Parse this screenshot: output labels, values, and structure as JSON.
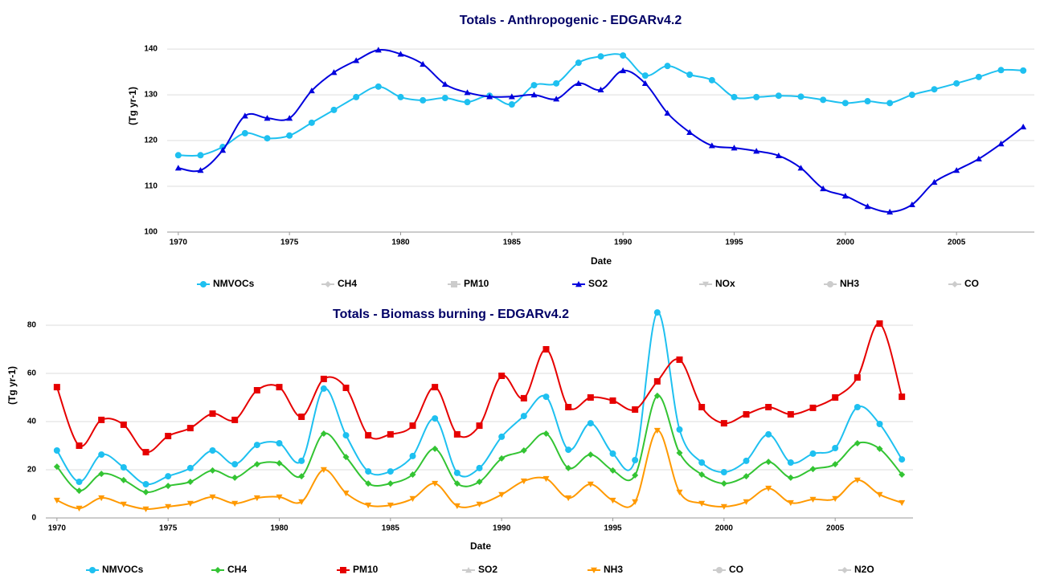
{
  "chart_data": [
    {
      "type": "line",
      "title": "Totals - Anthropogenic - EDGARv4.2",
      "ylabel": "(Tg yr-1)",
      "xlabel": "Date",
      "x": [
        1970,
        1971,
        1972,
        1973,
        1974,
        1975,
        1976,
        1977,
        1978,
        1979,
        1980,
        1981,
        1982,
        1983,
        1984,
        1985,
        1986,
        1987,
        1988,
        1989,
        1990,
        1991,
        1992,
        1993,
        1994,
        1995,
        1996,
        1997,
        1998,
        1999,
        2000,
        2001,
        2002,
        2003,
        2004,
        2005,
        2006,
        2007,
        2008
      ],
      "xlim": [
        1969.5,
        2008.5
      ],
      "xticks": [
        1970,
        1975,
        1980,
        1985,
        1990,
        1995,
        2000,
        2005
      ],
      "ylim": [
        100,
        143
      ],
      "yticks": [
        100,
        110,
        120,
        130,
        140
      ],
      "grid": true,
      "series": [
        {
          "name": "NMVOCs",
          "color": "#1ec0f0",
          "marker": "circle",
          "visible": true,
          "values": [
            116.8,
            116.8,
            118.6,
            121.6,
            120.5,
            121.1,
            123.9,
            126.7,
            129.5,
            131.8,
            129.5,
            128.8,
            129.3,
            128.4,
            129.8,
            127.9,
            132.1,
            132.5,
            137.0,
            138.4,
            138.6,
            134.2,
            136.3,
            134.4,
            133.2,
            129.5,
            129.5,
            129.8,
            129.6,
            128.9,
            128.2,
            128.6,
            128.2,
            130.0,
            131.2,
            132.5,
            133.9,
            135.4,
            135.3
          ]
        },
        {
          "name": "CH4",
          "color": "#cccccc",
          "marker": "diamond",
          "visible": false,
          "values": [
            null,
            null,
            null,
            null,
            null,
            null,
            null,
            null,
            null,
            null,
            null,
            null,
            null,
            null,
            null,
            null,
            null,
            null,
            null,
            null,
            null,
            null,
            null,
            null,
            null,
            null,
            null,
            null,
            null,
            null,
            null,
            null,
            null,
            null,
            null,
            null,
            null,
            null,
            null
          ]
        },
        {
          "name": "PM10",
          "color": "#cccccc",
          "marker": "square",
          "visible": false,
          "values": [
            null,
            null,
            null,
            null,
            null,
            null,
            null,
            null,
            null,
            null,
            null,
            null,
            null,
            null,
            null,
            null,
            null,
            null,
            null,
            null,
            null,
            null,
            null,
            null,
            null,
            null,
            null,
            null,
            null,
            null,
            null,
            null,
            null,
            null,
            null,
            null,
            null,
            null,
            null
          ]
        },
        {
          "name": "SO2",
          "color": "#0000dd",
          "marker": "triangle",
          "visible": true,
          "values": [
            114.0,
            113.5,
            117.9,
            125.4,
            124.9,
            124.9,
            130.9,
            134.9,
            137.5,
            139.8,
            138.9,
            136.7,
            132.3,
            130.5,
            129.6,
            129.6,
            130.0,
            129.1,
            132.5,
            131.1,
            135.3,
            132.5,
            126.0,
            121.8,
            118.9,
            118.4,
            117.7,
            116.7,
            114.0,
            109.5,
            107.9,
            105.6,
            104.4,
            106.0,
            110.9,
            113.5,
            116.0,
            119.3,
            123.0
          ]
        },
        {
          "name": "NOx",
          "color": "#cccccc",
          "marker": "triangle-down",
          "visible": false,
          "values": [
            null,
            null,
            null,
            null,
            null,
            null,
            null,
            null,
            null,
            null,
            null,
            null,
            null,
            null,
            null,
            null,
            null,
            null,
            null,
            null,
            null,
            null,
            null,
            null,
            null,
            null,
            null,
            null,
            null,
            null,
            null,
            null,
            null,
            null,
            null,
            null,
            null,
            null,
            null
          ]
        },
        {
          "name": "NH3",
          "color": "#cccccc",
          "marker": "circle",
          "visible": false,
          "values": [
            null,
            null,
            null,
            null,
            null,
            null,
            null,
            null,
            null,
            null,
            null,
            null,
            null,
            null,
            null,
            null,
            null,
            null,
            null,
            null,
            null,
            null,
            null,
            null,
            null,
            null,
            null,
            null,
            null,
            null,
            null,
            null,
            null,
            null,
            null,
            null,
            null,
            null,
            null
          ]
        },
        {
          "name": "CO",
          "color": "#cccccc",
          "marker": "diamond",
          "visible": false,
          "values": [
            null,
            null,
            null,
            null,
            null,
            null,
            null,
            null,
            null,
            null,
            null,
            null,
            null,
            null,
            null,
            null,
            null,
            null,
            null,
            null,
            null,
            null,
            null,
            null,
            null,
            null,
            null,
            null,
            null,
            null,
            null,
            null,
            null,
            null,
            null,
            null,
            null,
            null,
            null
          ]
        }
      ]
    },
    {
      "type": "line",
      "title": "Totals - Biomass burning - EDGARv4.2",
      "ylabel": "(Tg yr-1)",
      "xlabel": "Date",
      "x": [
        1970,
        1971,
        1972,
        1973,
        1974,
        1975,
        1976,
        1977,
        1978,
        1979,
        1980,
        1981,
        1982,
        1983,
        1984,
        1985,
        1986,
        1987,
        1988,
        1989,
        1990,
        1991,
        1992,
        1993,
        1994,
        1995,
        1996,
        1997,
        1998,
        1999,
        2000,
        2001,
        2002,
        2003,
        2004,
        2005,
        2006,
        2007,
        2008
      ],
      "xlim": [
        1969.5,
        2008.5
      ],
      "xticks": [
        1970,
        1975,
        1980,
        1985,
        1990,
        1995,
        2000,
        2005
      ],
      "ylim": [
        0,
        88
      ],
      "yticks": [
        0,
        20,
        40,
        60,
        80
      ],
      "grid": true,
      "series": [
        {
          "name": "NMVOCs",
          "color": "#1ec0f0",
          "marker": "circle",
          "visible": true,
          "values": [
            28,
            15,
            26.3,
            21,
            14,
            17.3,
            20.7,
            28,
            22.3,
            30.3,
            31,
            23.7,
            53.7,
            34.3,
            19.3,
            19.3,
            25.7,
            41.3,
            18.7,
            20.7,
            33.7,
            42.3,
            50.3,
            28.3,
            39.3,
            26.7,
            24,
            85.3,
            36.7,
            23,
            19,
            23.7,
            34.7,
            23,
            26.7,
            29,
            46,
            39,
            24.3
          ]
        },
        {
          "name": "CH4",
          "color": "#33c433",
          "marker": "diamond",
          "visible": true,
          "values": [
            21.3,
            11.3,
            18.3,
            15.7,
            10.7,
            13.3,
            15,
            19.7,
            16.7,
            22.3,
            22.7,
            17.3,
            35,
            25.3,
            14.3,
            14.3,
            18,
            28.7,
            14.3,
            15,
            24.7,
            28,
            35,
            20.7,
            26.3,
            19.7,
            17.7,
            50.7,
            27,
            18,
            14.3,
            17.3,
            23.3,
            16.7,
            20.3,
            22.3,
            31,
            28.7,
            18
          ]
        },
        {
          "name": "PM10",
          "color": "#e60000",
          "marker": "square",
          "visible": true,
          "values": [
            54.3,
            30,
            40.7,
            38.7,
            27.3,
            34,
            37.3,
            43.3,
            40.7,
            53,
            54.3,
            42,
            57.7,
            54,
            34.3,
            34.7,
            38.3,
            54.3,
            34.7,
            38.3,
            59,
            49.7,
            70,
            46,
            50,
            48.7,
            45,
            56.7,
            65.7,
            46,
            39.3,
            43,
            46,
            43,
            45.7,
            50,
            58.3,
            80.7,
            50.3
          ]
        },
        {
          "name": "SO2",
          "color": "#cccccc",
          "marker": "triangle",
          "visible": false,
          "values": [
            null,
            null,
            null,
            null,
            null,
            null,
            null,
            null,
            null,
            null,
            null,
            null,
            null,
            null,
            null,
            null,
            null,
            null,
            null,
            null,
            null,
            null,
            null,
            null,
            null,
            null,
            null,
            null,
            null,
            null,
            null,
            null,
            null,
            null,
            null,
            null,
            null,
            null,
            null
          ]
        },
        {
          "name": "NH3",
          "color": "#ff9900",
          "marker": "triangle-down",
          "visible": true,
          "values": [
            7.3,
            4,
            8.3,
            5.7,
            3.7,
            4.7,
            6,
            8.7,
            6,
            8.3,
            8.7,
            6.7,
            20,
            10.3,
            5.3,
            5.3,
            8,
            14.3,
            5,
            5.7,
            9.7,
            15.3,
            16.3,
            8.3,
            14,
            7.3,
            6.7,
            36.3,
            10.7,
            6,
            4.7,
            6.7,
            12.3,
            6.3,
            7.7,
            8,
            15.7,
            9.7,
            6.3
          ]
        },
        {
          "name": "CO",
          "color": "#cccccc",
          "marker": "circle",
          "visible": false,
          "values": [
            null,
            null,
            null,
            null,
            null,
            null,
            null,
            null,
            null,
            null,
            null,
            null,
            null,
            null,
            null,
            null,
            null,
            null,
            null,
            null,
            null,
            null,
            null,
            null,
            null,
            null,
            null,
            null,
            null,
            null,
            null,
            null,
            null,
            null,
            null,
            null,
            null,
            null,
            null
          ]
        },
        {
          "name": "N2O",
          "color": "#cccccc",
          "marker": "diamond",
          "visible": false,
          "values": [
            null,
            null,
            null,
            null,
            null,
            null,
            null,
            null,
            null,
            null,
            null,
            null,
            null,
            null,
            null,
            null,
            null,
            null,
            null,
            null,
            null,
            null,
            null,
            null,
            null,
            null,
            null,
            null,
            null,
            null,
            null,
            null,
            null,
            null,
            null,
            null,
            null,
            null,
            null
          ]
        }
      ]
    }
  ]
}
